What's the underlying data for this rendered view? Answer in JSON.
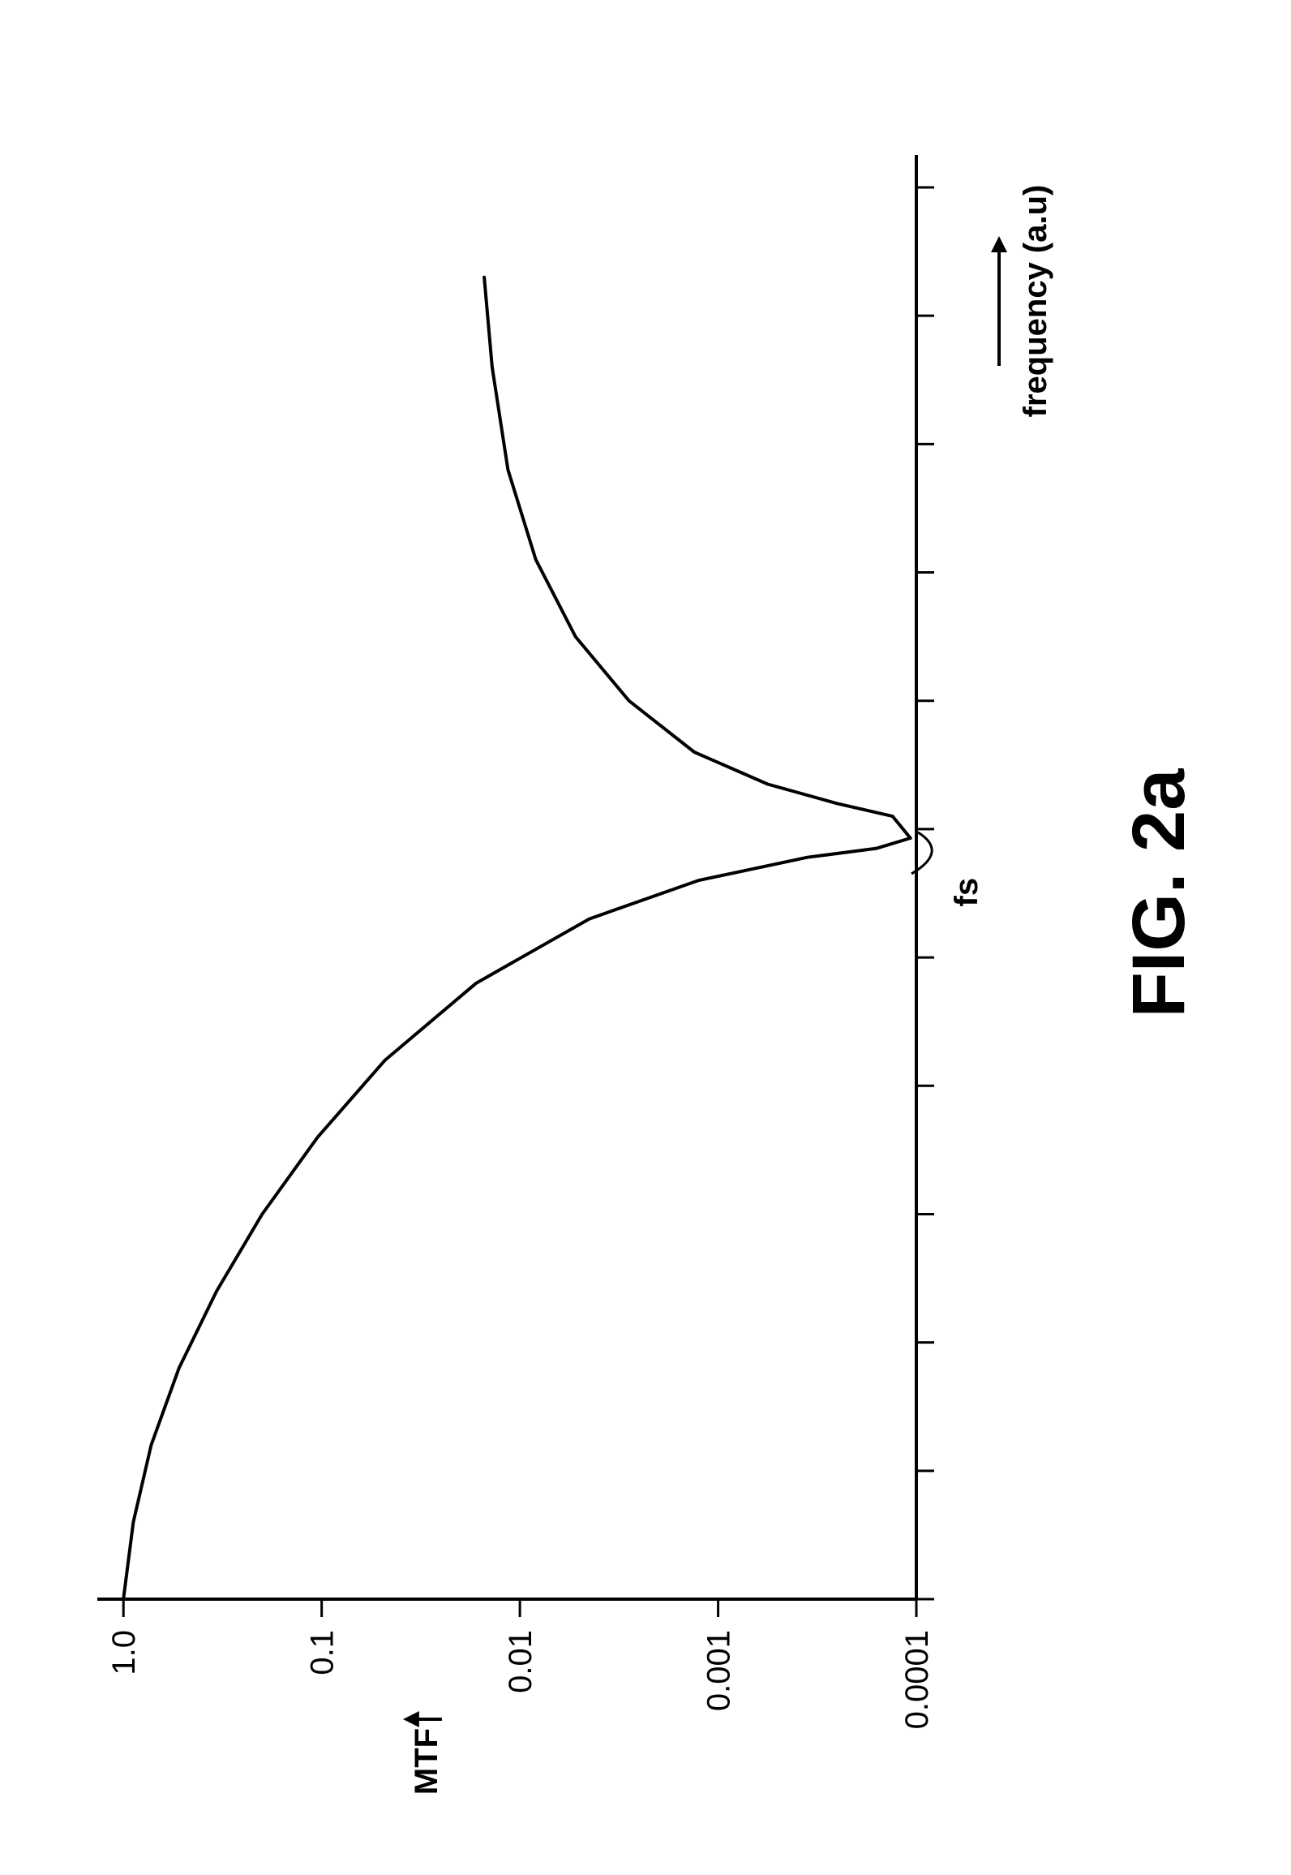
{
  "figure": {
    "type": "line",
    "caption": "FIG. 2a",
    "caption_fontsize": 92,
    "caption_fontweight": "bold",
    "caption_color": "#000000",
    "y_axis_label": "MTF",
    "y_axis_label_fontsize": 40,
    "y_axis_label_fontweight": "bold",
    "x_axis_label": "frequency (a.u)",
    "x_axis_label_fontsize": 40,
    "x_axis_label_fontweight": "bold",
    "fs_label": "fs",
    "fs_label_fontsize": 40,
    "fs_label_fontweight": "bold",
    "background_color": "#ffffff",
    "axis_color": "#000000",
    "line_color": "#000000",
    "tick_color": "#000000",
    "text_color": "#000000",
    "axis_line_width": 4,
    "curve_line_width": 4,
    "tick_line_width": 3,
    "y_tick_labels": [
      "1.0",
      "0.1",
      "0.01",
      "0.001",
      "0.0001"
    ],
    "y_tick_decades": [
      0,
      -1,
      -2,
      -3,
      -4
    ],
    "y_tick_fontsize": 40,
    "x_tick_count": 12,
    "y_axis_logmin": -4,
    "y_axis_logmax": 0.05,
    "fs_index_of_ticks": 6,
    "curve": {
      "comment": "MTF(f) on a log-y axis, dipping near zero at sampling frequency fs and rebounding; x in arbitrary units scaled 0..11 matching tick indices, y as log10(MTF)",
      "points": [
        {
          "x": 0.0,
          "logy": 0.0
        },
        {
          "x": 0.6,
          "logy": -0.05
        },
        {
          "x": 1.2,
          "logy": -0.14
        },
        {
          "x": 1.8,
          "logy": -0.28
        },
        {
          "x": 2.4,
          "logy": -0.47
        },
        {
          "x": 3.0,
          "logy": -0.7
        },
        {
          "x": 3.6,
          "logy": -0.98
        },
        {
          "x": 4.2,
          "logy": -1.32
        },
        {
          "x": 4.8,
          "logy": -1.78
        },
        {
          "x": 5.3,
          "logy": -2.35
        },
        {
          "x": 5.6,
          "logy": -2.9
        },
        {
          "x": 5.78,
          "logy": -3.45
        },
        {
          "x": 5.85,
          "logy": -3.8
        },
        {
          "x": 5.93,
          "logy": -3.97
        },
        {
          "x": 6.1,
          "logy": -3.88
        },
        {
          "x": 6.2,
          "logy": -3.6
        },
        {
          "x": 6.35,
          "logy": -3.25
        },
        {
          "x": 6.6,
          "logy": -2.88
        },
        {
          "x": 7.0,
          "logy": -2.55
        },
        {
          "x": 7.5,
          "logy": -2.28
        },
        {
          "x": 8.1,
          "logy": -2.08
        },
        {
          "x": 8.8,
          "logy": -1.94
        },
        {
          "x": 9.6,
          "logy": -1.86
        },
        {
          "x": 10.3,
          "logy": -1.82
        }
      ]
    }
  }
}
